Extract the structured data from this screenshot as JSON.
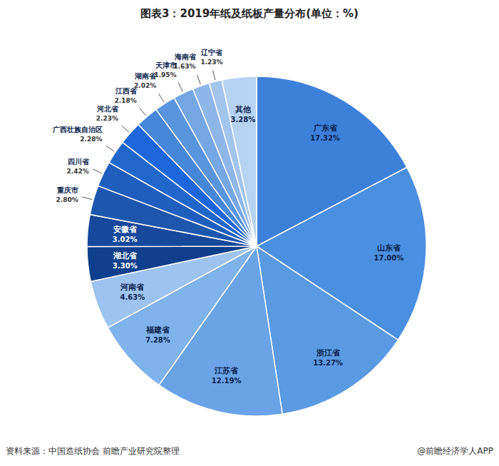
{
  "chart_data": {
    "type": "pie",
    "title": "图表3：2019年纸及纸板产量分布(单位：%)",
    "categories": [
      "广东省",
      "山东省",
      "浙江省",
      "江苏省",
      "福建省",
      "河南省",
      "湖北省",
      "安徽省",
      "重庆市",
      "四川省",
      "广西壮族自治区",
      "河北省",
      "江西省",
      "湖南省",
      "天津市",
      "海南省",
      "辽宁省",
      "其他"
    ],
    "values": [
      17.32,
      17.0,
      13.27,
      12.19,
      7.28,
      4.63,
      3.3,
      3.02,
      2.8,
      2.42,
      2.28,
      2.23,
      2.18,
      2.02,
      1.95,
      1.63,
      1.23,
      3.28
    ],
    "value_labels": [
      "17.32%",
      "17.00%",
      "13.27%",
      "12.19%",
      "7.28%",
      "4.63%",
      "3.30%",
      "3.02%",
      "2.80%",
      "2.42%",
      "2.28%",
      "2.23%",
      "2.18%",
      "2.02%",
      "1.95%",
      "1.63%",
      "1.23%",
      "3.28%"
    ],
    "colors": [
      "#3d80d9",
      "#4b8fe0",
      "#5a9ae3",
      "#6aa4e7",
      "#80b2eb",
      "#9dc4f0",
      "#0f3f8c",
      "#17489c",
      "#1d56ad",
      "#1f5ebd",
      "#2166cb",
      "#1d66dc",
      "#4787d9",
      "#5995de",
      "#76a7e4",
      "#8db6e9",
      "#a3c5ed",
      "#b8d3f2"
    ],
    "data_labels": true,
    "annotations": [
      "资料来源：中国造纸协会 前瞻产业研究院整理",
      "@前瞻经济学人APP"
    ]
  }
}
